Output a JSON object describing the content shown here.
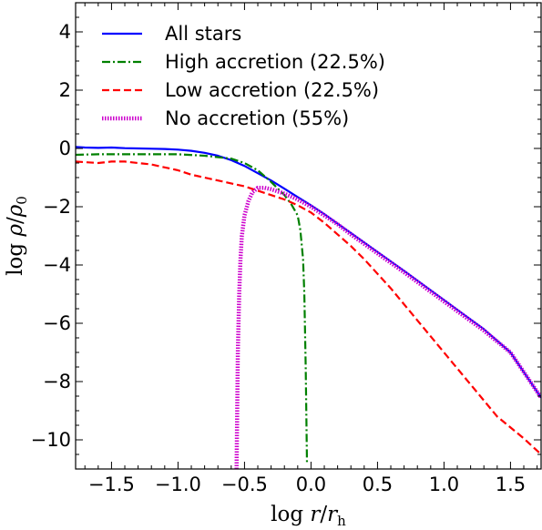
{
  "chart_data": {
    "type": "line",
    "title": "",
    "xlabel": "log r/r_h",
    "ylabel": "log ρ/ρ_0",
    "xlim": [
      -1.77,
      1.73
    ],
    "ylim": [
      -11,
      5
    ],
    "x_ticks": [
      -1.5,
      -1.0,
      -0.5,
      0.0,
      0.5,
      1.0,
      1.5
    ],
    "x_tick_labels": [
      "−1.5",
      "−1.0",
      "−0.5",
      "0.0",
      "0.5",
      "1.0",
      "1.5"
    ],
    "y_ticks": [
      4,
      2,
      0,
      -2,
      -4,
      -6,
      -8,
      -10
    ],
    "y_tick_labels": [
      "4",
      "2",
      "0",
      "−2",
      "−4",
      "−6",
      "−8",
      "−10"
    ],
    "grid": false,
    "legend_position": "top-left",
    "series": [
      {
        "name": "All stars",
        "color": "#0000ff",
        "style": "solid",
        "x": [
          -1.77,
          -1.7,
          -1.6,
          -1.5,
          -1.4,
          -1.3,
          -1.2,
          -1.1,
          -1.0,
          -0.9,
          -0.8,
          -0.7,
          -0.6,
          -0.5,
          -0.4,
          -0.3,
          -0.2,
          -0.1,
          0.0,
          0.1,
          0.2,
          0.3,
          0.5,
          0.7,
          1.0,
          1.3,
          1.5,
          1.73
        ],
        "y": [
          0.05,
          0.03,
          0.02,
          0.03,
          0.01,
          0.0,
          -0.01,
          -0.02,
          -0.04,
          -0.08,
          -0.15,
          -0.25,
          -0.4,
          -0.6,
          -0.85,
          -1.1,
          -1.38,
          -1.67,
          -1.95,
          -2.25,
          -2.58,
          -2.9,
          -3.55,
          -4.2,
          -5.2,
          -6.2,
          -7.0,
          -8.55
        ]
      },
      {
        "name": "High accretion (22.5%)",
        "color": "#008000",
        "style": "dashdot",
        "x": [
          -1.77,
          -1.6,
          -1.4,
          -1.2,
          -1.0,
          -0.8,
          -0.6,
          -0.5,
          -0.4,
          -0.3,
          -0.2,
          -0.15,
          -0.1,
          -0.08,
          -0.06,
          -0.05,
          -0.04,
          -0.03
        ],
        "y": [
          -0.22,
          -0.2,
          -0.2,
          -0.2,
          -0.2,
          -0.25,
          -0.35,
          -0.5,
          -0.75,
          -1.15,
          -1.6,
          -1.9,
          -2.3,
          -2.8,
          -3.8,
          -5.0,
          -7.5,
          -10.8
        ]
      },
      {
        "name": "Low accretion (22.5%)",
        "color": "#ff0000",
        "style": "dashed",
        "x": [
          -1.77,
          -1.6,
          -1.5,
          -1.4,
          -1.3,
          -1.2,
          -1.1,
          -1.0,
          -0.9,
          -0.8,
          -0.7,
          -0.6,
          -0.5,
          -0.4,
          -0.3,
          -0.2,
          -0.1,
          0.0,
          0.1,
          0.2,
          0.3,
          0.4,
          0.5,
          0.6,
          0.8,
          1.0,
          1.2,
          1.4,
          1.6,
          1.73
        ],
        "y": [
          -0.45,
          -0.5,
          -0.45,
          -0.45,
          -0.5,
          -0.55,
          -0.65,
          -0.75,
          -0.9,
          -1.0,
          -1.1,
          -1.2,
          -1.3,
          -1.45,
          -1.6,
          -1.75,
          -1.95,
          -2.2,
          -2.55,
          -2.95,
          -3.35,
          -3.8,
          -4.3,
          -4.8,
          -5.9,
          -7.0,
          -8.1,
          -9.2,
          -9.95,
          -10.5
        ]
      },
      {
        "name": "No accretion (55%)",
        "color": "#cc00cc",
        "style": "dotted",
        "x": [
          -0.56,
          -0.555,
          -0.55,
          -0.54,
          -0.53,
          -0.52,
          -0.5,
          -0.47,
          -0.44,
          -0.4,
          -0.35,
          -0.3,
          -0.2,
          -0.1,
          0.0,
          0.1,
          0.2,
          0.3,
          0.5,
          0.7,
          1.0,
          1.3,
          1.5,
          1.73
        ],
        "y": [
          -11.0,
          -9.0,
          -7.0,
          -5.0,
          -3.8,
          -3.0,
          -2.3,
          -1.8,
          -1.5,
          -1.35,
          -1.35,
          -1.4,
          -1.55,
          -1.75,
          -2.0,
          -2.3,
          -2.6,
          -2.95,
          -3.6,
          -4.25,
          -5.25,
          -6.25,
          -7.0,
          -8.55
        ]
      }
    ]
  }
}
